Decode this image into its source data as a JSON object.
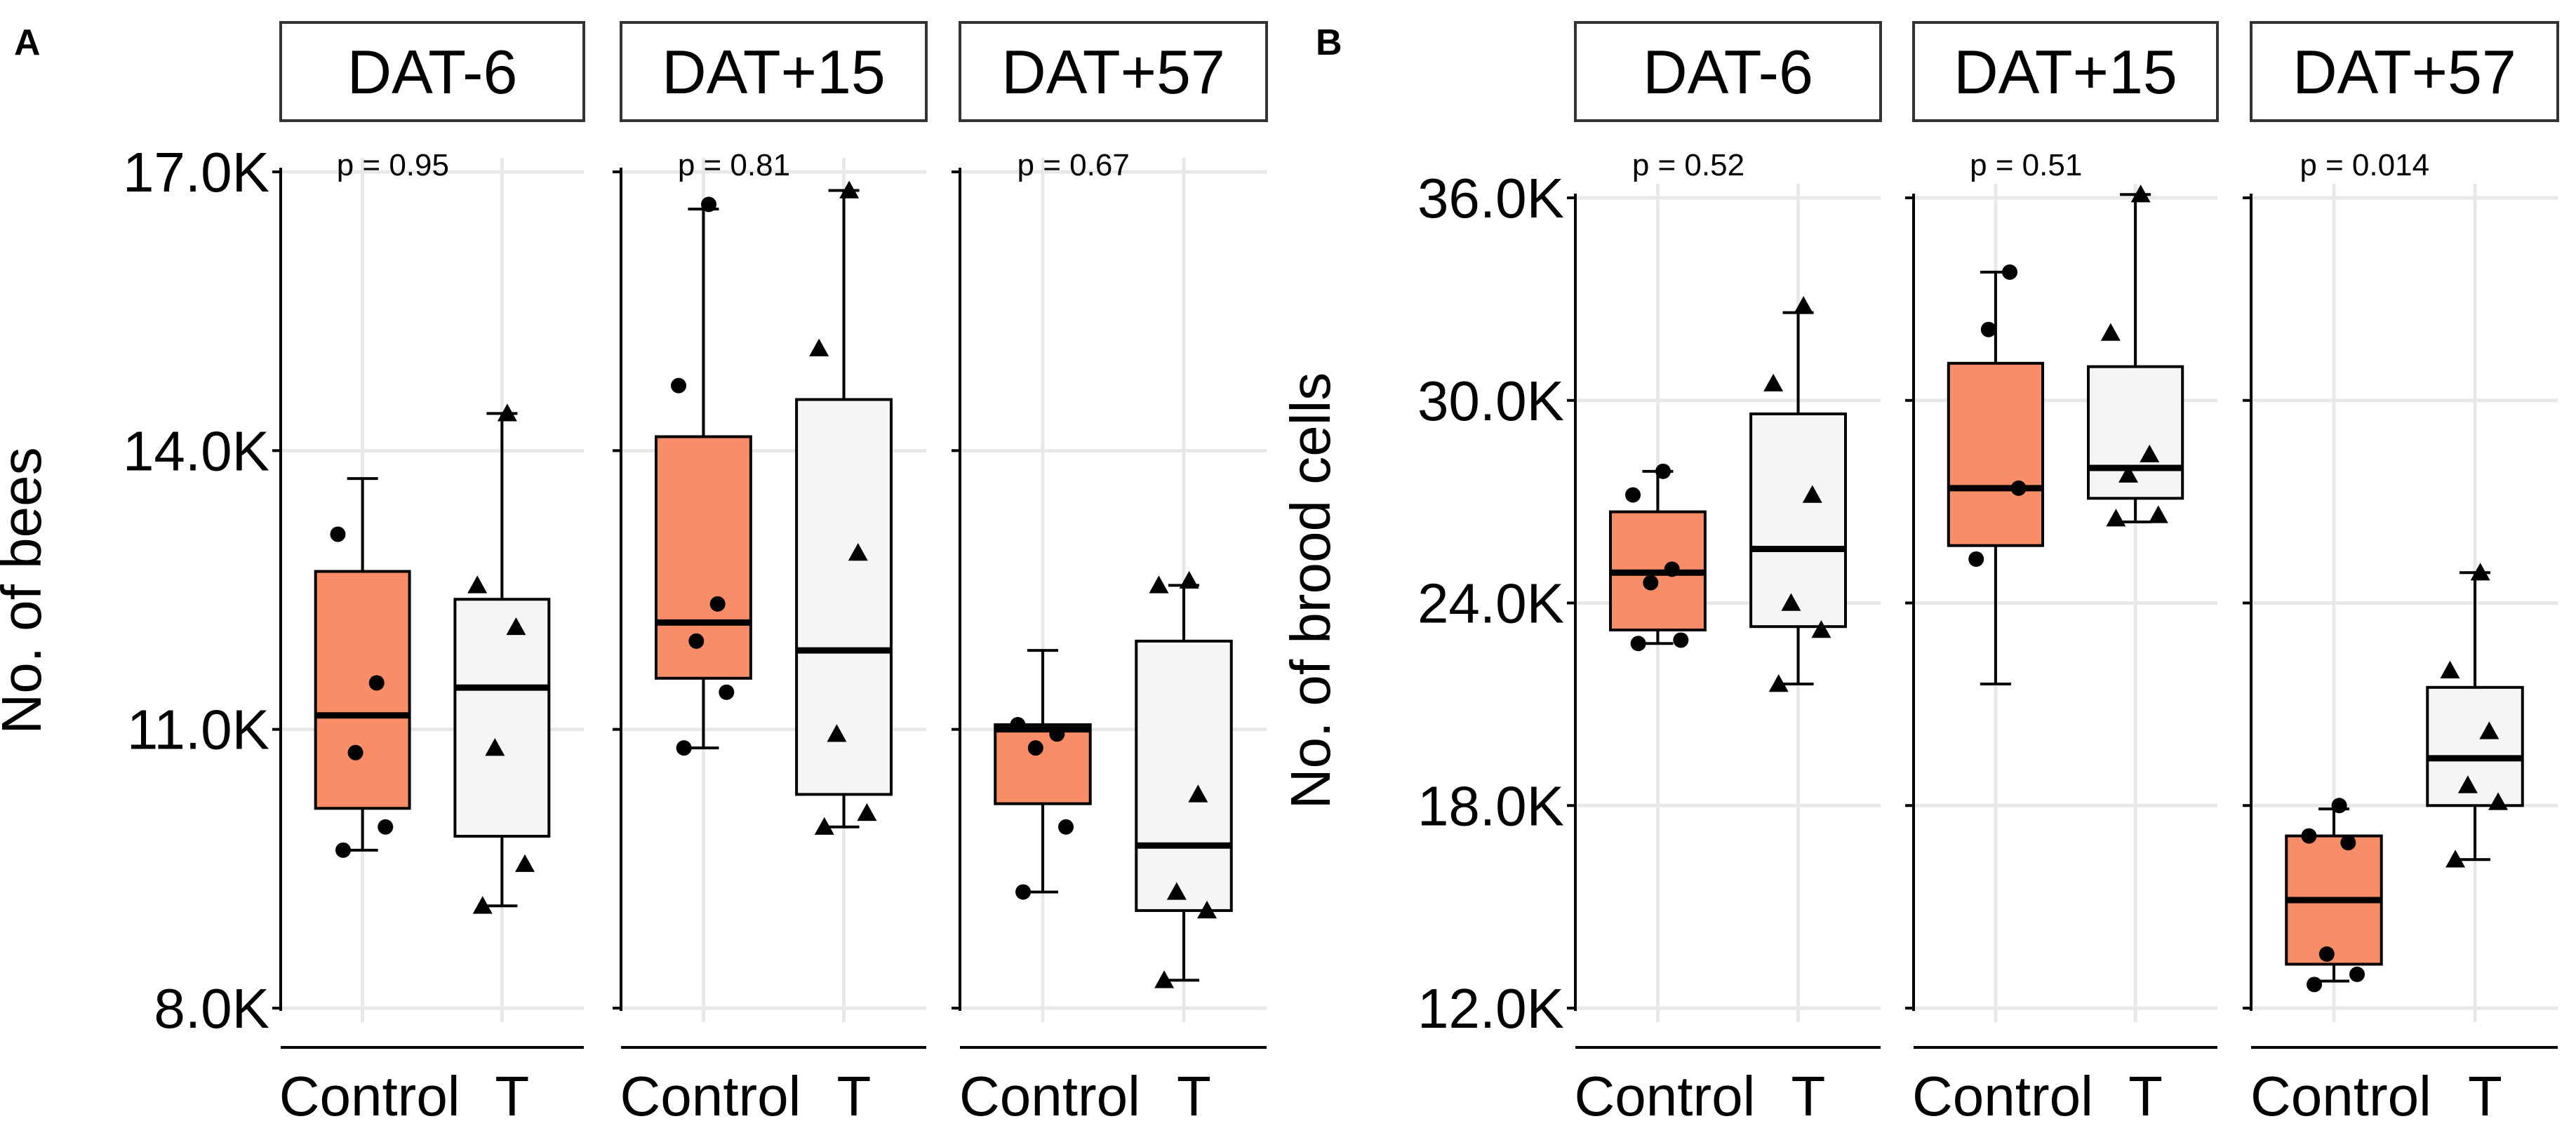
{
  "colors": {
    "control_fill": "#F88D68",
    "t_fill": "#F5F5F5",
    "grid": "#E8E8E8",
    "background": "#FFFFFF"
  },
  "chart_data": [
    {
      "panel": "A",
      "type": "boxplot",
      "ylabel": "No. of bees",
      "ylim": [
        8000,
        17000
      ],
      "yticks": [
        {
          "value": 8000,
          "label": "8.0K"
        },
        {
          "value": 11000,
          "label": "11.0K"
        },
        {
          "value": 14000,
          "label": "14.0K"
        },
        {
          "value": 17000,
          "label": "17.0K"
        }
      ],
      "categories": [
        "Control",
        "T"
      ],
      "facets": [
        {
          "label": "DAT-6",
          "p_label": "p = 0.95",
          "groups": [
            {
              "category": "Control",
              "marker": "circle",
              "box": {
                "whisker_low": 9700,
                "q1": 10150,
                "median": 11150,
                "q3": 12700,
                "whisker_high": 13700
              },
              "points": [
                9700,
                9950,
                10750,
                11500,
                13100
              ]
            },
            {
              "category": "T",
              "marker": "triangle",
              "box": {
                "whisker_low": 9100,
                "q1": 9850,
                "median": 11450,
                "q3": 12400,
                "whisker_high": 14400
              },
              "points": [
                9100,
                9550,
                10800,
                12100,
                12550,
                14400
              ]
            }
          ]
        },
        {
          "label": "DAT+15",
          "p_label": "p = 0.81",
          "groups": [
            {
              "category": "Control",
              "marker": "circle",
              "box": {
                "whisker_low": 10800,
                "q1": 11550,
                "median": 12150,
                "q3": 14150,
                "whisker_high": 16600
              },
              "points": [
                10800,
                11400,
                11950,
                12350,
                14700,
                16650
              ]
            },
            {
              "category": "T",
              "marker": "triangle",
              "box": {
                "whisker_low": 9950,
                "q1": 10300,
                "median": 11850,
                "q3": 14550,
                "whisker_high": 16800
              },
              "points": [
                9950,
                10100,
                10950,
                12900,
                15100,
                16800
              ]
            }
          ]
        },
        {
          "label": "DAT+57",
          "p_label": "p = 0.67",
          "groups": [
            {
              "category": "Control",
              "marker": "circle",
              "box": {
                "whisker_low": 9250,
                "q1": 10200,
                "median": 11000,
                "q3": 11050,
                "whisker_high": 11850
              },
              "points": [
                9250,
                9950,
                10800,
                10950,
                11050
              ]
            },
            {
              "category": "T",
              "marker": "triangle",
              "box": {
                "whisker_low": 8300,
                "q1": 9050,
                "median": 9750,
                "q3": 11950,
                "whisker_high": 12550
              },
              "points": [
                8300,
                9050,
                9250,
                10300,
                12550,
                12600
              ]
            }
          ]
        }
      ]
    },
    {
      "panel": "B",
      "type": "boxplot",
      "ylabel": "No. of brood cells",
      "ylim": [
        12000,
        36000
      ],
      "yticks": [
        {
          "value": 12000,
          "label": "12.0K"
        },
        {
          "value": 18000,
          "label": "18.0K"
        },
        {
          "value": 24000,
          "label": "24.0K"
        },
        {
          "value": 30000,
          "label": "30.0K"
        },
        {
          "value": 36000,
          "label": "36.0K"
        }
      ],
      "categories": [
        "Control",
        "T"
      ],
      "facets": [
        {
          "label": "DAT-6",
          "p_label": "p = 0.52",
          "groups": [
            {
              "category": "Control",
              "marker": "circle",
              "box": {
                "whisker_low": 22800,
                "q1": 23200,
                "median": 24900,
                "q3": 26700,
                "whisker_high": 27900
              },
              "points": [
                22800,
                22900,
                24600,
                25000,
                27200,
                27900
              ]
            },
            {
              "category": "T",
              "marker": "triangle",
              "box": {
                "whisker_low": 21600,
                "q1": 23300,
                "median": 25600,
                "q3": 29600,
                "whisker_high": 32600
              },
              "points": [
                21600,
                23200,
                24000,
                27200,
                30500,
                32800
              ]
            }
          ]
        },
        {
          "label": "DAT+15",
          "p_label": "p = 0.51",
          "groups": [
            {
              "category": "Control",
              "marker": "circle",
              "box": {
                "whisker_low": 21600,
                "q1": 25700,
                "median": 27400,
                "q3": 31100,
                "whisker_high": 33800
              },
              "points": [
                25300,
                27400,
                32100,
                33800
              ]
            },
            {
              "category": "T",
              "marker": "triangle",
              "box": {
                "whisker_low": 26400,
                "q1": 27100,
                "median": 28000,
                "q3": 31000,
                "whisker_high": 36100
              },
              "points": [
                26500,
                26600,
                27800,
                28400,
                32000,
                36100
              ]
            }
          ]
        },
        {
          "label": "DAT+57",
          "p_label": "p = 0.014",
          "groups": [
            {
              "category": "Control",
              "marker": "circle",
              "box": {
                "whisker_low": 12800,
                "q1": 13300,
                "median": 15200,
                "q3": 17100,
                "whisker_high": 17900
              },
              "points": [
                12700,
                13000,
                13600,
                16900,
                17100,
                18000
              ]
            },
            {
              "category": "T",
              "marker": "triangle",
              "box": {
                "whisker_low": 16400,
                "q1": 18000,
                "median": 19400,
                "q3": 21500,
                "whisker_high": 24900
              },
              "points": [
                16400,
                18100,
                18600,
                20200,
                22000,
                24900
              ]
            }
          ]
        }
      ]
    }
  ]
}
